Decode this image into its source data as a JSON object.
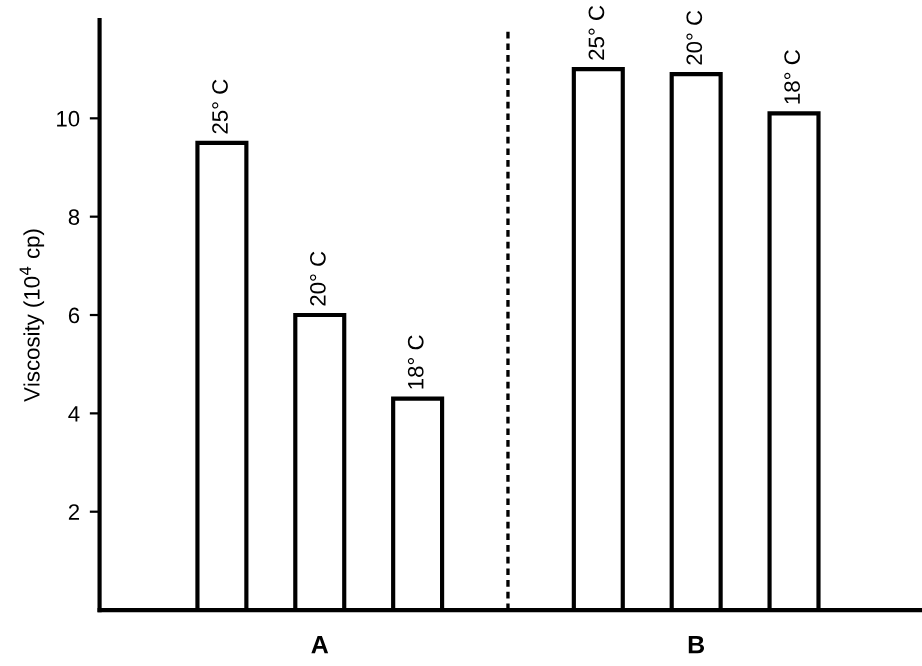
{
  "chart_data": {
    "type": "bar",
    "ylabel": "Viscosity (10$^{4}$ cp)",
    "categories": [
      "A",
      "B"
    ],
    "series": [
      {
        "name": "25° C",
        "color": "#ffffff",
        "values": [
          9.5,
          11.0
        ]
      },
      {
        "name": "20° C",
        "color": "#ffffff",
        "values": [
          6.0,
          10.9
        ]
      },
      {
        "name": "18° C",
        "color": "#ffffff",
        "values": [
          4.3,
          10.1
        ]
      }
    ],
    "ylim": [
      0,
      12
    ],
    "yticks": [
      2,
      4,
      6,
      8,
      10
    ],
    "grid": false,
    "legend": false
  }
}
